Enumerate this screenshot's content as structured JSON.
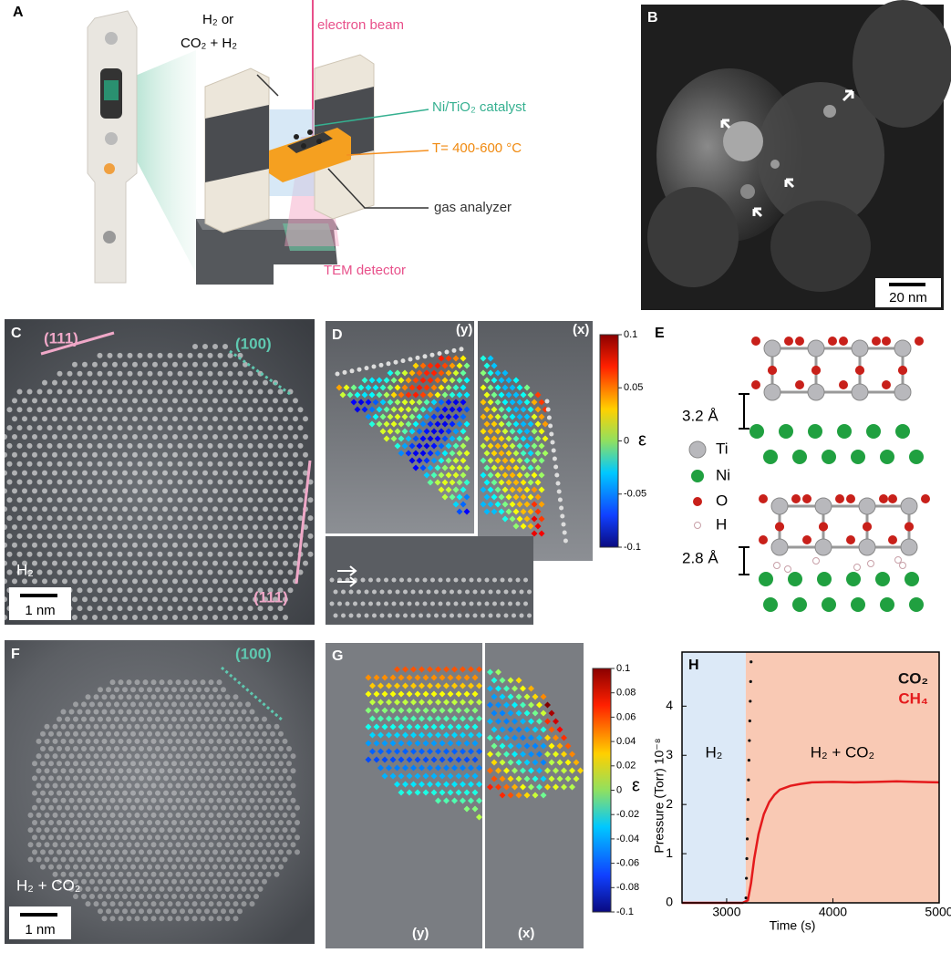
{
  "panels": {
    "A": {
      "label": "A",
      "gas_line1": "H₂ or",
      "gas_line2": "CO₂ + H₂",
      "beam": "electron beam",
      "catalyst": "Ni/TiO₂ catalyst",
      "temperature": "T= 400-600 °C",
      "analyzer": "gas analyzer",
      "detector": "TEM detector"
    },
    "B": {
      "label": "B",
      "scale_bar": "20 nm"
    },
    "C": {
      "label": "C",
      "facets": [
        "(111)",
        "(100)",
        "(111)"
      ],
      "condition": "H₂",
      "scale_bar": "1 nm"
    },
    "D": {
      "label": "D",
      "y_label": "(y)",
      "x_label": "(x)",
      "colorbar": {
        "label": "ε",
        "lim": [
          -0.1,
          0.1
        ],
        "ticks": [
          0.1,
          0.05,
          0,
          -0.05,
          -0.1
        ]
      }
    },
    "E": {
      "label": "E",
      "spacing_top": "3.2 Å",
      "legend": [
        "Ti",
        "Ni",
        "O",
        "H"
      ],
      "spacing_bottom": "2.8 Å"
    },
    "F": {
      "label": "F",
      "facet": "(100)",
      "condition": "H₂ + CO₂",
      "scale_bar": "1 nm"
    },
    "G": {
      "label": "G",
      "y_label": "(y)",
      "x_label": "(x)",
      "colorbar": {
        "label": "ε",
        "lim": [
          -0.1,
          0.1
        ],
        "ticks": [
          0.1,
          0.08,
          0.06,
          0.04,
          0.02,
          0,
          -0.02,
          -0.04,
          -0.06,
          -0.08,
          -0.1
        ]
      }
    }
  },
  "chart_data": {
    "type": "line",
    "label": "H",
    "xlabel": "Time (s)",
    "ylabel": "Pressure (Torr) 10⁻⁸",
    "xlim": [
      2580,
      5000
    ],
    "xticks": [
      3000,
      4000,
      5000
    ],
    "ylim": [
      0,
      5.1
    ],
    "yticks": [
      0,
      1,
      2,
      3,
      4
    ],
    "regions": [
      {
        "name": "H₂",
        "x": [
          2580,
          3180
        ],
        "color": "#dce9f7"
      },
      {
        "name": "H₂ + CO₂",
        "x": [
          3180,
          5000
        ],
        "color": "#f9c9b4"
      }
    ],
    "series": [
      {
        "name": "CO₂",
        "color": "#111111",
        "style": "dots",
        "x": [
          3182,
          3186,
          3190,
          3194,
          3198,
          3202,
          3206,
          3210,
          3214,
          3218,
          3222,
          3226,
          3230
        ],
        "values": [
          0.1,
          0.5,
          0.9,
          1.3,
          1.7,
          2.1,
          2.5,
          2.9,
          3.3,
          3.7,
          4.1,
          4.5,
          4.9
        ]
      },
      {
        "name": "CH₄",
        "color": "#e41a1c",
        "style": "line",
        "x": [
          2580,
          2800,
          3000,
          3150,
          3200,
          3230,
          3260,
          3300,
          3350,
          3400,
          3450,
          3500,
          3600,
          3700,
          3800,
          4000,
          4200,
          4400,
          4600,
          4800,
          5000
        ],
        "values": [
          0,
          0,
          0,
          0,
          0.05,
          0.4,
          0.9,
          1.4,
          1.8,
          2.05,
          2.2,
          2.3,
          2.38,
          2.42,
          2.45,
          2.46,
          2.45,
          2.46,
          2.47,
          2.46,
          2.45
        ]
      }
    ]
  }
}
